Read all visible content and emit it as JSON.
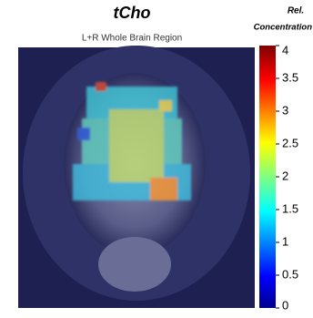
{
  "figure": {
    "title": "tCho",
    "subtitle": "L+R Whole Brain Region"
  },
  "colorbar": {
    "label": [
      "Rel.",
      "Concentration"
    ],
    "lim": [
      0,
      4
    ],
    "ticks": [
      0,
      0.5,
      1,
      1.5,
      2,
      2.5,
      3,
      3.5,
      4
    ]
  }
}
